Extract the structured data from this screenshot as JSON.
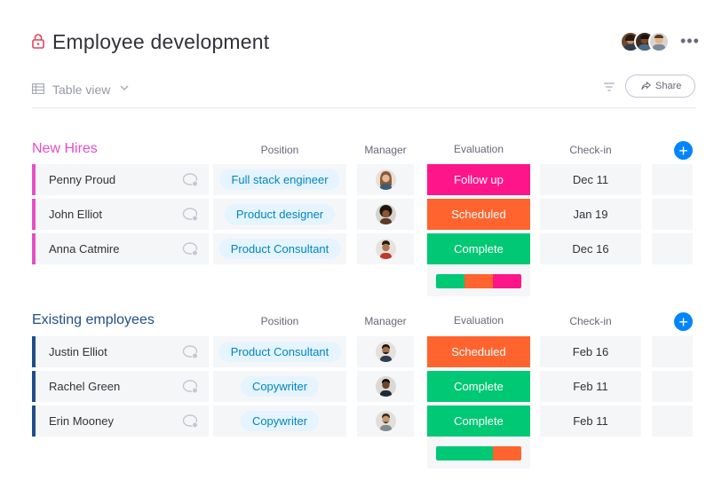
{
  "header": {
    "title": "Employee development",
    "icons": {
      "lock": "lock-icon",
      "more": "more-icon"
    },
    "more_label": "•••"
  },
  "toolbar": {
    "view_label": "Table view",
    "share_label": "Share",
    "icons": {
      "view": "table-icon",
      "chevron": "chevron-down-icon",
      "filter": "filter-icon",
      "share": "share-icon"
    }
  },
  "colors": {
    "new_hires": "#e44fc7",
    "existing": "#1f4e8c",
    "follow_up": "#ff158a",
    "scheduled": "#ff642e",
    "complete": "#00c875",
    "accent": "#0085ff",
    "pill_bg": "#e5f4ff",
    "pill_text": "#0086c0"
  },
  "columns": {
    "position": "Position",
    "manager": "Manager",
    "evaluation": "Evaluation",
    "checkin": "Check-in"
  },
  "add_label": "+",
  "groups": [
    {
      "title": "New Hires",
      "color": "#e44fc7",
      "rows": [
        {
          "name": "Penny Proud",
          "position": "Full stack engineer",
          "evaluation": "Follow up",
          "eval_color": "#ff158a",
          "checkin": "Dec 11"
        },
        {
          "name": "John Elliot",
          "position": "Product designer",
          "evaluation": "Scheduled",
          "eval_color": "#ff642e",
          "checkin": "Jan 19"
        },
        {
          "name": "Anna Catmire",
          "position": "Product Consultant",
          "evaluation": "Complete",
          "eval_color": "#00c875",
          "checkin": "Dec 16"
        }
      ],
      "summary": [
        {
          "label": "Complete",
          "fraction": 0.333,
          "color": "#00c875"
        },
        {
          "label": "Scheduled",
          "fraction": 0.333,
          "color": "#ff642e"
        },
        {
          "label": "Follow up",
          "fraction": 0.334,
          "color": "#ff158a"
        }
      ]
    },
    {
      "title": "Existing employees",
      "color": "#1f4e8c",
      "rows": [
        {
          "name": "Justin Elliot",
          "position": "Product Consultant",
          "evaluation": "Scheduled",
          "eval_color": "#ff642e",
          "checkin": "Feb 16"
        },
        {
          "name": "Rachel Green",
          "position": "Copywriter",
          "evaluation": "Complete",
          "eval_color": "#00c875",
          "checkin": "Feb 11"
        },
        {
          "name": "Erin Mooney",
          "position": "Copywriter",
          "evaluation": "Complete",
          "eval_color": "#00c875",
          "checkin": "Feb 11"
        }
      ],
      "summary": [
        {
          "label": "Complete",
          "fraction": 0.667,
          "color": "#00c875"
        },
        {
          "label": "Scheduled",
          "fraction": 0.333,
          "color": "#ff642e"
        }
      ]
    }
  ]
}
